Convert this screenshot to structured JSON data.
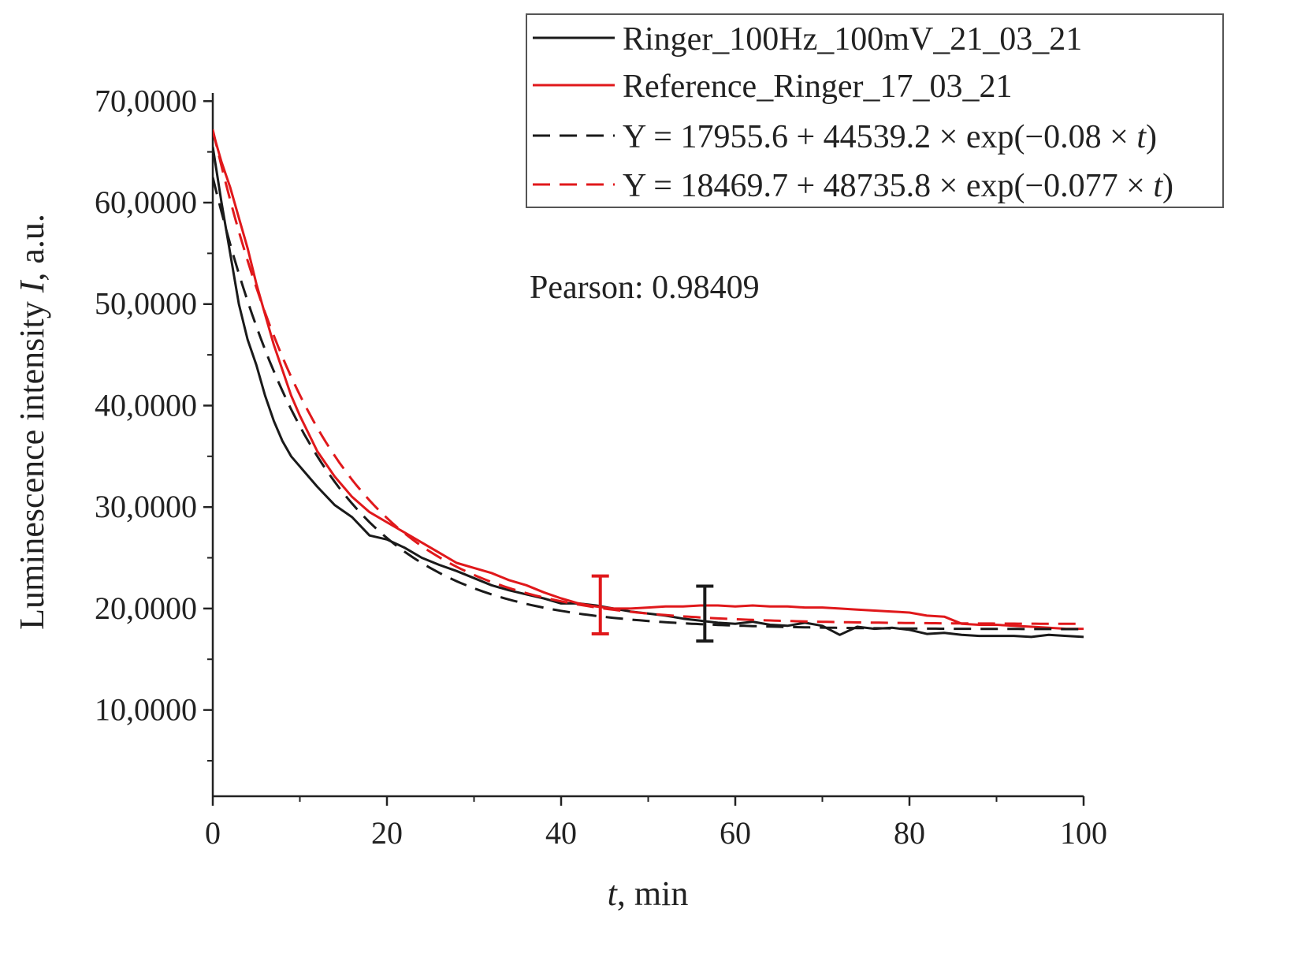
{
  "chart_data": {
    "type": "line",
    "title": "",
    "xlabel_italic": "t",
    "xlabel_rest": ", min",
    "ylabel_pre": "Luminescence intensity ",
    "ylabel_italic": "I",
    "ylabel_post": ", a.u.",
    "xlim": [
      0,
      100
    ],
    "ylim": [
      1500,
      70800
    ],
    "xticks": [
      0,
      20,
      40,
      60,
      80,
      100
    ],
    "xtick_labels": [
      "0",
      "20",
      "40",
      "60",
      "80",
      "100"
    ],
    "yticks": [
      10000,
      20000,
      30000,
      40000,
      50000,
      60000,
      70000
    ],
    "ytick_labels": [
      "10,0000",
      "20,0000",
      "30,0000",
      "40,0000",
      "50,0000",
      "60,0000",
      "70,0000"
    ],
    "grid": false,
    "legend_position": "top-right",
    "annotation": "Pearson: 0.98409",
    "series": [
      {
        "name": "Ringer_100Hz_100mV_21_03_21",
        "kind": "data",
        "color": "#1a1a1a",
        "x": [
          0,
          1,
          2,
          3,
          4,
          5,
          6,
          7,
          8,
          9,
          10,
          12,
          14,
          16,
          18,
          20,
          22,
          24,
          26,
          28,
          30,
          32,
          34,
          36,
          38,
          40,
          42,
          44,
          46,
          48,
          50,
          52,
          54,
          56,
          58,
          60,
          62,
          64,
          66,
          68,
          70,
          72,
          74,
          76,
          78,
          80,
          82,
          84,
          86,
          88,
          90,
          92,
          94,
          96,
          98,
          100
        ],
        "y": [
          65500,
          60000,
          55000,
          50000,
          46500,
          44000,
          41000,
          38500,
          36500,
          35000,
          34000,
          32000,
          30200,
          29000,
          27200,
          26800,
          26000,
          25000,
          24300,
          23700,
          23000,
          22300,
          21800,
          21400,
          21000,
          20500,
          20500,
          20300,
          20000,
          19700,
          19500,
          19300,
          19000,
          18800,
          18600,
          18500,
          18700,
          18400,
          18300,
          18600,
          18300,
          17400,
          18200,
          18000,
          18100,
          17900,
          17500,
          17600,
          17400,
          17300,
          17300,
          17300,
          17200,
          17400,
          17300,
          17200
        ]
      },
      {
        "name": "Reference_Ringer_17_03_21",
        "kind": "data",
        "color": "#e0181b",
        "x": [
          0,
          1,
          2,
          3,
          4,
          5,
          6,
          7,
          8,
          9,
          10,
          12,
          14,
          16,
          18,
          20,
          22,
          24,
          26,
          28,
          30,
          32,
          34,
          36,
          38,
          40,
          42,
          44,
          46,
          48,
          50,
          52,
          54,
          56,
          58,
          60,
          62,
          64,
          66,
          68,
          70,
          72,
          74,
          76,
          78,
          80,
          82,
          84,
          86,
          88,
          90,
          92,
          94,
          96,
          98,
          100
        ],
        "y": [
          67000,
          64000,
          61500,
          58500,
          55500,
          52000,
          49000,
          46000,
          43500,
          41000,
          39000,
          35500,
          33000,
          31000,
          29500,
          28500,
          27500,
          26500,
          25500,
          24500,
          24000,
          23500,
          22800,
          22300,
          21600,
          21000,
          20500,
          20200,
          20000,
          20000,
          20100,
          20200,
          20200,
          20300,
          20300,
          20200,
          20300,
          20200,
          20200,
          20100,
          20100,
          20000,
          19900,
          19800,
          19700,
          19600,
          19300,
          19200,
          18500,
          18400,
          18400,
          18300,
          18200,
          18100,
          18000,
          18000
        ]
      },
      {
        "name": "Y = 17955.6 + 44539.2 × exp(−0.08 × t)",
        "legend_pre": "Y = 17955.6 + 44539.2 × exp(−0.08 × ",
        "legend_italic": "t",
        "legend_post": ")",
        "kind": "fit",
        "color": "#1a1a1a",
        "formula": {
          "a": 17955.6,
          "b": 44539.2,
          "k": 0.08
        }
      },
      {
        "name": "Y = 18469.7 + 48735.8 × exp(−0.077 × t)",
        "legend_pre": "Y = 18469.7 + 48735.8 × exp(−0.077 × ",
        "legend_italic": "t",
        "legend_post": ")",
        "kind": "fit",
        "color": "#e0181b",
        "formula": {
          "a": 18469.7,
          "b": 48735.8,
          "k": 0.077
        }
      }
    ],
    "error_bars": [
      {
        "x": 44.5,
        "low": 17500,
        "high": 23200,
        "color": "#e0181b"
      },
      {
        "x": 56.5,
        "low": 16800,
        "high": 22200,
        "color": "#1a1a1a"
      }
    ]
  }
}
